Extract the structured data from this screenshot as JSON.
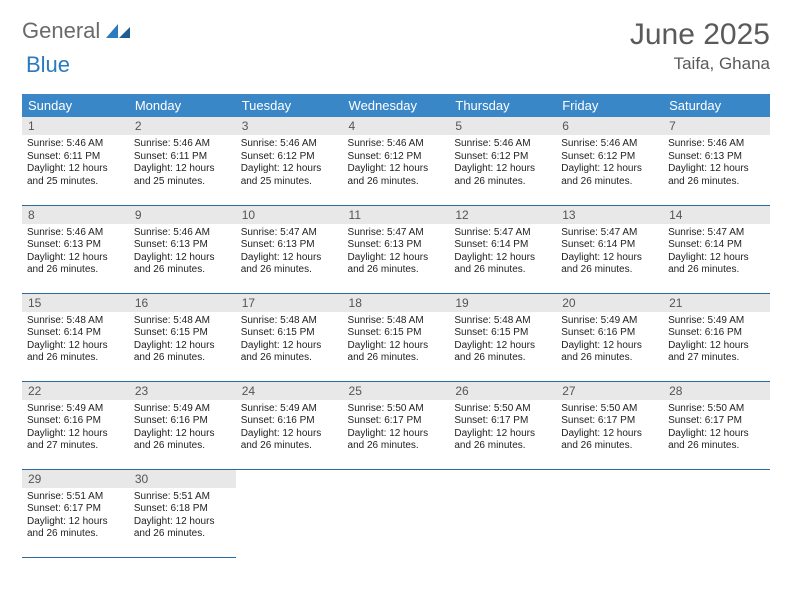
{
  "logo": {
    "text1": "General",
    "text2": "Blue"
  },
  "title": {
    "month": "June 2025",
    "location": "Taifa, Ghana"
  },
  "style": {
    "header_bg": "#3a87c8",
    "header_fg": "#ffffff",
    "daynum_bg": "#e8e8e8",
    "row_border": "#2a6aa0",
    "body_bg": "#ffffff",
    "text_color": "#222222",
    "title_color": "#5a5a5a",
    "logo_gray": "#6a6a6a",
    "logo_blue": "#2a7ac0",
    "header_fontsize": 13,
    "daynum_fontsize": 12,
    "daytext_fontsize": 10,
    "title_fontsize": 30,
    "subtitle_fontsize": 17,
    "columns": 7,
    "rows": 5
  },
  "weekdays": [
    "Sunday",
    "Monday",
    "Tuesday",
    "Wednesday",
    "Thursday",
    "Friday",
    "Saturday"
  ],
  "days": [
    {
      "n": 1,
      "sr": "5:46 AM",
      "ss": "6:11 PM",
      "dl": "12 hours and 25 minutes."
    },
    {
      "n": 2,
      "sr": "5:46 AM",
      "ss": "6:11 PM",
      "dl": "12 hours and 25 minutes."
    },
    {
      "n": 3,
      "sr": "5:46 AM",
      "ss": "6:12 PM",
      "dl": "12 hours and 25 minutes."
    },
    {
      "n": 4,
      "sr": "5:46 AM",
      "ss": "6:12 PM",
      "dl": "12 hours and 26 minutes."
    },
    {
      "n": 5,
      "sr": "5:46 AM",
      "ss": "6:12 PM",
      "dl": "12 hours and 26 minutes."
    },
    {
      "n": 6,
      "sr": "5:46 AM",
      "ss": "6:12 PM",
      "dl": "12 hours and 26 minutes."
    },
    {
      "n": 7,
      "sr": "5:46 AM",
      "ss": "6:13 PM",
      "dl": "12 hours and 26 minutes."
    },
    {
      "n": 8,
      "sr": "5:46 AM",
      "ss": "6:13 PM",
      "dl": "12 hours and 26 minutes."
    },
    {
      "n": 9,
      "sr": "5:46 AM",
      "ss": "6:13 PM",
      "dl": "12 hours and 26 minutes."
    },
    {
      "n": 10,
      "sr": "5:47 AM",
      "ss": "6:13 PM",
      "dl": "12 hours and 26 minutes."
    },
    {
      "n": 11,
      "sr": "5:47 AM",
      "ss": "6:13 PM",
      "dl": "12 hours and 26 minutes."
    },
    {
      "n": 12,
      "sr": "5:47 AM",
      "ss": "6:14 PM",
      "dl": "12 hours and 26 minutes."
    },
    {
      "n": 13,
      "sr": "5:47 AM",
      "ss": "6:14 PM",
      "dl": "12 hours and 26 minutes."
    },
    {
      "n": 14,
      "sr": "5:47 AM",
      "ss": "6:14 PM",
      "dl": "12 hours and 26 minutes."
    },
    {
      "n": 15,
      "sr": "5:48 AM",
      "ss": "6:14 PM",
      "dl": "12 hours and 26 minutes."
    },
    {
      "n": 16,
      "sr": "5:48 AM",
      "ss": "6:15 PM",
      "dl": "12 hours and 26 minutes."
    },
    {
      "n": 17,
      "sr": "5:48 AM",
      "ss": "6:15 PM",
      "dl": "12 hours and 26 minutes."
    },
    {
      "n": 18,
      "sr": "5:48 AM",
      "ss": "6:15 PM",
      "dl": "12 hours and 26 minutes."
    },
    {
      "n": 19,
      "sr": "5:48 AM",
      "ss": "6:15 PM",
      "dl": "12 hours and 26 minutes."
    },
    {
      "n": 20,
      "sr": "5:49 AM",
      "ss": "6:16 PM",
      "dl": "12 hours and 26 minutes."
    },
    {
      "n": 21,
      "sr": "5:49 AM",
      "ss": "6:16 PM",
      "dl": "12 hours and 27 minutes."
    },
    {
      "n": 22,
      "sr": "5:49 AM",
      "ss": "6:16 PM",
      "dl": "12 hours and 27 minutes."
    },
    {
      "n": 23,
      "sr": "5:49 AM",
      "ss": "6:16 PM",
      "dl": "12 hours and 26 minutes."
    },
    {
      "n": 24,
      "sr": "5:49 AM",
      "ss": "6:16 PM",
      "dl": "12 hours and 26 minutes."
    },
    {
      "n": 25,
      "sr": "5:50 AM",
      "ss": "6:17 PM",
      "dl": "12 hours and 26 minutes."
    },
    {
      "n": 26,
      "sr": "5:50 AM",
      "ss": "6:17 PM",
      "dl": "12 hours and 26 minutes."
    },
    {
      "n": 27,
      "sr": "5:50 AM",
      "ss": "6:17 PM",
      "dl": "12 hours and 26 minutes."
    },
    {
      "n": 28,
      "sr": "5:50 AM",
      "ss": "6:17 PM",
      "dl": "12 hours and 26 minutes."
    },
    {
      "n": 29,
      "sr": "5:51 AM",
      "ss": "6:17 PM",
      "dl": "12 hours and 26 minutes."
    },
    {
      "n": 30,
      "sr": "5:51 AM",
      "ss": "6:18 PM",
      "dl": "12 hours and 26 minutes."
    }
  ],
  "labels": {
    "sunrise": "Sunrise:",
    "sunset": "Sunset:",
    "daylight": "Daylight:"
  }
}
